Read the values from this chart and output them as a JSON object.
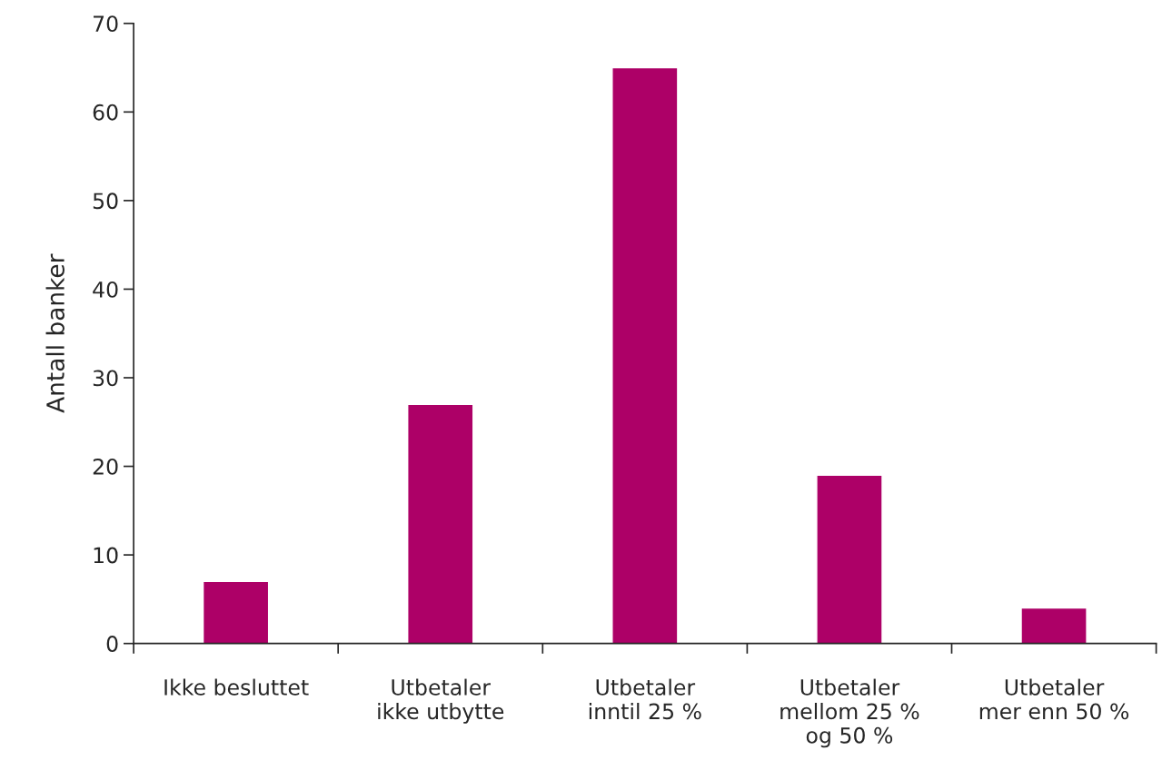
{
  "chart_data": {
    "type": "bar",
    "ylabel": "Antall banker",
    "categories": [
      "Ikke besluttet",
      "Utbetaler\nikke utbytte",
      "Utbetaler\ninntil 25 %",
      "Utbetaler\nmellom 25 %\nog 50 %",
      "Utbetaler\nmer enn 50 %"
    ],
    "values": [
      7,
      27,
      65,
      19,
      4
    ],
    "color": "#ad0067",
    "ylim": [
      0,
      70
    ],
    "yticks": [
      0,
      10,
      20,
      30,
      40,
      50,
      60,
      70
    ],
    "grid": false,
    "legend": false
  }
}
